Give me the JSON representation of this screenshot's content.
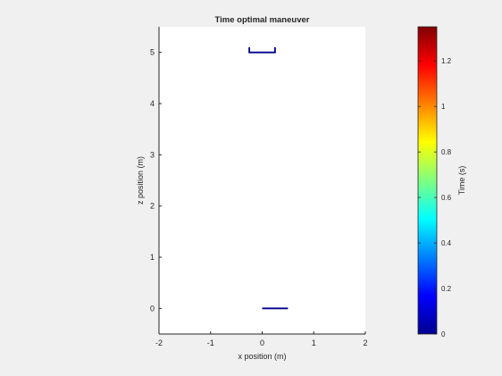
{
  "chart_data": {
    "type": "line",
    "title": "Time optimal maneuver",
    "xlabel": "x position (m)",
    "ylabel": "z position (m)",
    "xlim": [
      -2,
      2
    ],
    "ylim": [
      -0.5,
      5.5
    ],
    "x_ticks": [
      -2,
      -1,
      0,
      1,
      2
    ],
    "y_ticks": [
      0,
      1,
      2,
      3,
      4,
      5
    ],
    "grid": false,
    "series": [
      {
        "x": [
          0,
          0.5
        ],
        "z": [
          0,
          0
        ],
        "time": 0
      },
      {
        "x": [
          -0.25,
          -0.25,
          0.25,
          0.25
        ],
        "z": [
          5.1,
          5.0,
          5.0,
          5.1
        ],
        "time": 0
      }
    ],
    "colorbar": {
      "label": "Time (s)",
      "colormap": "jet",
      "clim": [
        0,
        1.35
      ],
      "ticks": [
        0,
        0.2,
        0.4,
        0.6,
        0.8,
        1,
        1.2
      ]
    },
    "colors": {
      "line": "#00008f",
      "axes_bg": "#ffffff",
      "figure_bg": "#f0f0f0"
    }
  }
}
